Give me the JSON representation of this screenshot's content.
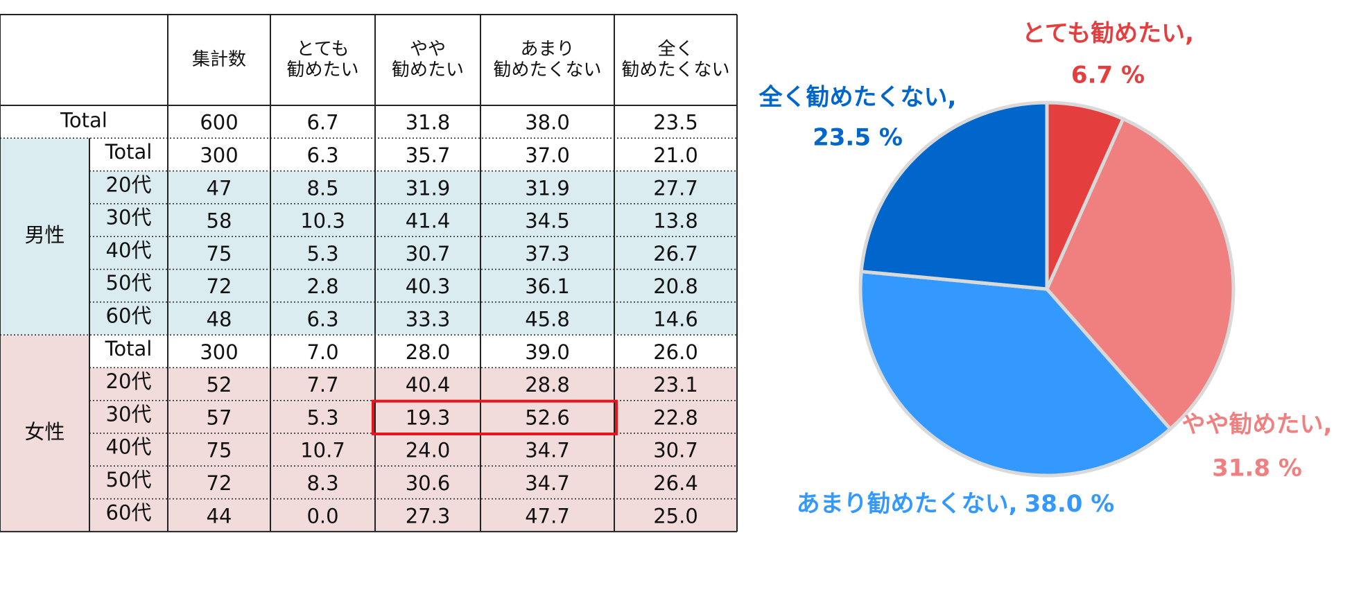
{
  "table": {
    "header": [
      [
        "集計数"
      ],
      [
        "とても",
        "勧めたい"
      ],
      [
        "やや",
        "勧めたい"
      ],
      [
        "あまり",
        "勧めたくない"
      ],
      [
        "全く",
        "勧めたくない"
      ]
    ],
    "total": {
      "label": "Total",
      "cells": [
        "600",
        "6.7",
        "31.8",
        "38.0",
        "23.5"
      ]
    },
    "groups": [
      {
        "name": "男性",
        "rows": [
          {
            "label": "Total",
            "cells": [
              "300",
              "6.3",
              "35.7",
              "37.0",
              "21.0"
            ]
          },
          {
            "label": "20代",
            "cells": [
              "47",
              "8.5",
              "31.9",
              "31.9",
              "27.7"
            ]
          },
          {
            "label": "30代",
            "cells": [
              "58",
              "10.3",
              "41.4",
              "34.5",
              "13.8"
            ]
          },
          {
            "label": "40代",
            "cells": [
              "75",
              "5.3",
              "30.7",
              "37.3",
              "26.7"
            ]
          },
          {
            "label": "50代",
            "cells": [
              "72",
              "2.8",
              "40.3",
              "36.1",
              "20.8"
            ]
          },
          {
            "label": "60代",
            "cells": [
              "48",
              "6.3",
              "33.3",
              "45.8",
              "14.6"
            ]
          }
        ]
      },
      {
        "name": "女性",
        "rows": [
          {
            "label": "Total",
            "cells": [
              "300",
              "7.0",
              "28.0",
              "39.0",
              "26.0"
            ]
          },
          {
            "label": "20代",
            "cells": [
              "52",
              "7.7",
              "40.4",
              "28.8",
              "23.1"
            ]
          },
          {
            "label": "30代",
            "cells": [
              "57",
              "5.3",
              "19.3",
              "52.6",
              "22.8"
            ]
          },
          {
            "label": "40代",
            "cells": [
              "75",
              "10.7",
              "24.0",
              "34.7",
              "30.7"
            ]
          },
          {
            "label": "50代",
            "cells": [
              "72",
              "8.3",
              "30.6",
              "34.7",
              "26.4"
            ]
          },
          {
            "label": "60代",
            "cells": [
              "44",
              "0.0",
              "27.3",
              "47.7",
              "25.0"
            ]
          }
        ]
      }
    ]
  },
  "chart_data": {
    "type": "pie",
    "categories": [
      "とても勧めたい,",
      "やや勧めたい,",
      "あまり勧めたくない,",
      "全く勧めたくない,"
    ],
    "values": [
      6.7,
      31.8,
      38.0,
      23.5
    ],
    "value_labels": [
      "6.7 %",
      "31.8 %",
      "38.0 %",
      "23.5 %"
    ],
    "colors": [
      "#e53e3e",
      "#f08080",
      "#3399ff",
      "#0066cc"
    ]
  }
}
